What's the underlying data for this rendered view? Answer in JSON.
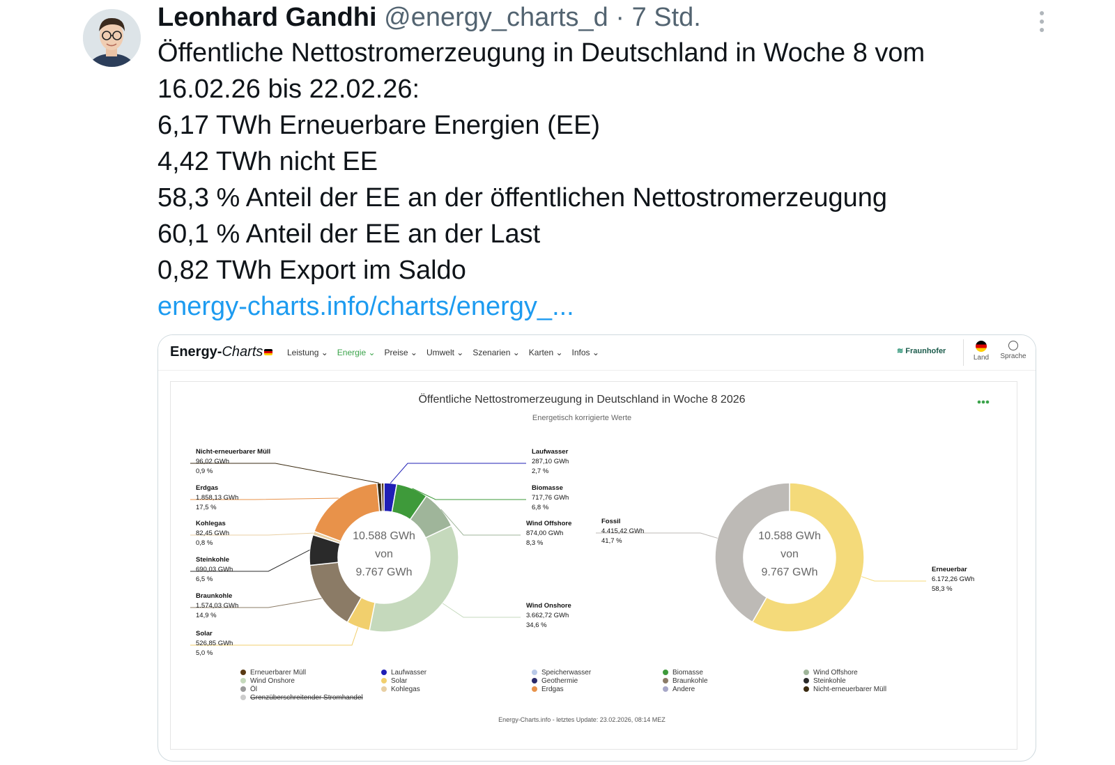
{
  "tweet": {
    "author_name": "Leonhard Gandhi",
    "handle": "@energy_charts_d",
    "separator": "·",
    "time": "7 Std.",
    "lines": [
      "Öffentliche Nettostromerzeugung in Deutschland in Woche 8 vom",
      "16.02.26 bis 22.02.26:",
      "6,17 TWh Erneuerbare Energien (EE)",
      "4,42 TWh nicht EE",
      "58,3 % Anteil der EE an der öffentlichen Nettostromerzeugung",
      "60,1 % Anteil der EE an der Last",
      "0,82 TWh Export im Saldo"
    ],
    "link": "energy-charts.info/charts/energy_..."
  },
  "energy_charts": {
    "logo_bold": "Energy-",
    "logo_italic": "Charts",
    "menu": [
      "Leistung",
      "Energie",
      "Preise",
      "Umwelt",
      "Szenarien",
      "Karten",
      "Infos"
    ],
    "active_menu": "Energie",
    "fraunhofer": "Fraunhofer",
    "land_label": "Land",
    "sprache_label": "Sprache",
    "footer": "Energy-Charts.info - letztes Update: 23.02.2026, 08:14 MEZ"
  },
  "colors": {
    "Laufwasser": "#1f1fb5",
    "Biomasse": "#3e9a3a",
    "Wind Offshore": "#9fb59a",
    "Wind Onshore": "#c5d9bc",
    "Solar": "#f1cf6d",
    "Braunkohle": "#8b7b66",
    "Steinkohle": "#2a2a2a",
    "Kohlegas": "#e8cfa3",
    "Erdgas": "#e8924a",
    "Nicht-erneuerbarer Müll": "#3a2a10",
    "Erneuerbarer Müll": "#5a3a14",
    "Fossil": "#bdbab6",
    "Erneuerbar": "#f4da7a"
  },
  "chart_data": [
    {
      "type": "pie",
      "title": "Öffentliche Nettostromerzeugung in Deutschland in Woche 8 2026",
      "subtitle": "Energetisch korrigierte Werte",
      "center_text": [
        "10.588 GWh",
        "von",
        "9.767 GWh"
      ],
      "slices": [
        {
          "name": "Laufwasser",
          "value_label": "287,10 GWh",
          "percent_label": "2,7 %",
          "value": 287.1
        },
        {
          "name": "Biomasse",
          "value_label": "717,76 GWh",
          "percent_label": "6,8 %",
          "value": 717.76
        },
        {
          "name": "Wind Offshore",
          "value_label": "874,00 GWh",
          "percent_label": "8,3 %",
          "value": 874.0
        },
        {
          "name": "Wind Onshore",
          "value_label": "3.662,72 GWh",
          "percent_label": "34,6 %",
          "value": 3662.72
        },
        {
          "name": "Solar",
          "value_label": "526,85 GWh",
          "percent_label": "5,0 %",
          "value": 526.85
        },
        {
          "name": "Braunkohle",
          "value_label": "1.574,03 GWh",
          "percent_label": "14,9 %",
          "value": 1574.03
        },
        {
          "name": "Steinkohle",
          "value_label": "690,03 GWh",
          "percent_label": "6,5 %",
          "value": 690.03
        },
        {
          "name": "Kohlegas",
          "value_label": "82,45 GWh",
          "percent_label": "0,8 %",
          "value": 82.45
        },
        {
          "name": "Erdgas",
          "value_label": "1.858,13 GWh",
          "percent_label": "17,5 %",
          "value": 1858.13
        },
        {
          "name": "Nicht-erneuerbarer Müll",
          "value_label": "96,02 GWh",
          "percent_label": "0,9 %",
          "value": 96.02
        },
        {
          "name": "Erneuerbarer Müll",
          "value_label": "",
          "percent_label": "",
          "value": 60
        }
      ]
    },
    {
      "type": "pie",
      "center_text": [
        "10.588 GWh",
        "von",
        "9.767 GWh"
      ],
      "slices": [
        {
          "name": "Erneuerbar",
          "value_label": "6.172,26 GWh",
          "percent_label": "58,3 %",
          "value": 6172.26
        },
        {
          "name": "Fossil",
          "value_label": "4.415,42 GWh",
          "percent_label": "41,7 %",
          "value": 4415.42
        }
      ]
    }
  ],
  "legend": [
    {
      "name": "Erneuerbarer Müll",
      "color": "#5a3a14"
    },
    {
      "name": "Laufwasser",
      "color": "#1f1fb5"
    },
    {
      "name": "Speicherwasser",
      "color": "#b9c9e8"
    },
    {
      "name": "Biomasse",
      "color": "#3e9a3a"
    },
    {
      "name": "Wind Offshore",
      "color": "#9fb59a"
    },
    {
      "name": "Wind Onshore",
      "color": "#c5d9bc"
    },
    {
      "name": "Solar",
      "color": "#f1cf6d"
    },
    {
      "name": "Geothermie",
      "color": "#2a2a6a"
    },
    {
      "name": "Braunkohle",
      "color": "#8b7b66"
    },
    {
      "name": "Steinkohle",
      "color": "#2a2a2a"
    },
    {
      "name": "Öl",
      "color": "#9a9a9a"
    },
    {
      "name": "Kohlegas",
      "color": "#e8cfa3"
    },
    {
      "name": "Erdgas",
      "color": "#e8924a"
    },
    {
      "name": "Andere",
      "color": "#a7a7c7"
    },
    {
      "name": "Nicht-erneuerbarer Müll",
      "color": "#3a2a10"
    },
    {
      "name": "Grenzüberschreitender Stromhandel",
      "color": "#cccccc",
      "disabled": true
    }
  ]
}
